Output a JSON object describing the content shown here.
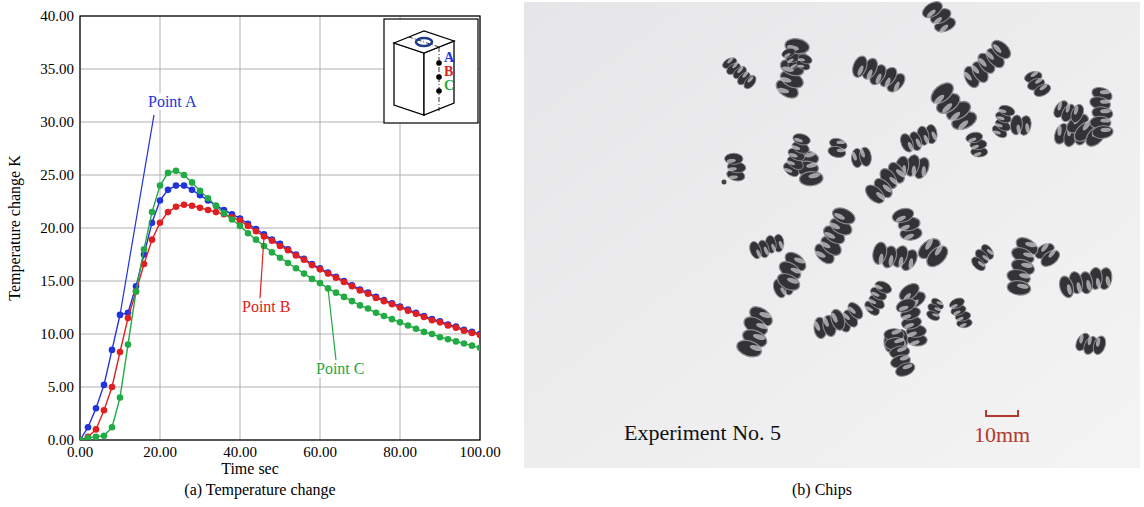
{
  "chart_data": {
    "type": "line",
    "title": "(a) Temperature change",
    "xlabel": "Time sec",
    "ylabel": "Temperature change K",
    "x": [
      0,
      2,
      4,
      6,
      8,
      10,
      12,
      14,
      16,
      18,
      20,
      22,
      24,
      26,
      28,
      30,
      32,
      34,
      36,
      38,
      40,
      42,
      44,
      46,
      48,
      50,
      52,
      54,
      56,
      58,
      60,
      62,
      64,
      66,
      68,
      70,
      72,
      74,
      76,
      78,
      80,
      82,
      84,
      86,
      88,
      90,
      92,
      94,
      96,
      98,
      100
    ],
    "series": [
      {
        "name": "Point A",
        "color": "#2233dd",
        "marker": "circle",
        "values": [
          0,
          1.2,
          3.0,
          5.2,
          8.5,
          11.8,
          12.0,
          14.5,
          17.5,
          20.5,
          22.6,
          23.6,
          24.0,
          24.0,
          23.6,
          23.1,
          22.6,
          22.1,
          21.7,
          21.3,
          20.9,
          20.4,
          19.9,
          19.4,
          18.9,
          18.5,
          18.0,
          17.5,
          17.1,
          16.6,
          16.2,
          15.8,
          15.4,
          15.0,
          14.6,
          14.2,
          13.9,
          13.5,
          13.2,
          12.9,
          12.6,
          12.3,
          12.0,
          11.7,
          11.4,
          11.2,
          10.9,
          10.7,
          10.4,
          10.2,
          10.0
        ]
      },
      {
        "name": "Point B",
        "color": "#e02020",
        "marker": "circle",
        "values": [
          0,
          0.3,
          1.0,
          2.8,
          5.0,
          8.3,
          11.5,
          14.0,
          16.6,
          18.9,
          20.5,
          21.5,
          22.0,
          22.2,
          22.1,
          21.9,
          21.7,
          21.5,
          21.3,
          21.0,
          20.7,
          20.2,
          19.7,
          19.2,
          18.8,
          18.3,
          17.9,
          17.4,
          17.0,
          16.5,
          16.1,
          15.7,
          15.3,
          14.9,
          14.5,
          14.1,
          13.8,
          13.4,
          13.1,
          12.8,
          12.5,
          12.2,
          11.9,
          11.6,
          11.3,
          11.1,
          10.8,
          10.6,
          10.3,
          10.1,
          9.9
        ]
      },
      {
        "name": "Point C",
        "color": "#22aa44",
        "marker": "circle",
        "values": [
          0,
          0.2,
          0.3,
          0.4,
          1.2,
          4.0,
          9.0,
          14.0,
          18.0,
          21.5,
          24.0,
          25.2,
          25.4,
          25.0,
          24.3,
          23.5,
          22.8,
          22.1,
          21.4,
          20.8,
          20.2,
          19.5,
          18.9,
          18.3,
          17.7,
          17.2,
          16.7,
          16.2,
          15.7,
          15.2,
          14.8,
          14.3,
          13.9,
          13.5,
          13.1,
          12.7,
          12.4,
          12.0,
          11.7,
          11.4,
          11.1,
          10.8,
          10.5,
          10.2,
          10.0,
          9.7,
          9.5,
          9.3,
          9.1,
          8.9,
          8.7
        ]
      }
    ],
    "xlim": [
      0,
      100
    ],
    "ylim": [
      0,
      40
    ],
    "xticks": [
      {
        "value": 0,
        "label": "0.00"
      },
      {
        "value": 20,
        "label": "20.00"
      },
      {
        "value": 40,
        "label": "40.00"
      },
      {
        "value": 60,
        "label": "60.00"
      },
      {
        "value": 80,
        "label": "80.00"
      },
      {
        "value": 100,
        "label": "100.00"
      }
    ],
    "yticks": [
      {
        "value": 0,
        "label": "0.00"
      },
      {
        "value": 5,
        "label": "5.00"
      },
      {
        "value": 10,
        "label": "10.00"
      },
      {
        "value": 15,
        "label": "15.00"
      },
      {
        "value": 20,
        "label": "20.00"
      },
      {
        "value": 25,
        "label": "25.00"
      },
      {
        "value": 30,
        "label": "30.00"
      },
      {
        "value": 35,
        "label": "35.00"
      },
      {
        "value": 40,
        "label": "40.00"
      }
    ],
    "grid": true,
    "annotations": [
      {
        "text": "Point A",
        "x": 10,
        "y": 11.8
      },
      {
        "text": "Point B",
        "x": 46,
        "y": 19.2
      },
      {
        "text": "Point C",
        "x": 62,
        "y": 14.3
      }
    ],
    "inset_labels": [
      "A",
      "B",
      "C"
    ]
  },
  "photo": {
    "caption": "(b) Chips",
    "label": "Experiment No. 5",
    "scale_bar": "10mm"
  }
}
